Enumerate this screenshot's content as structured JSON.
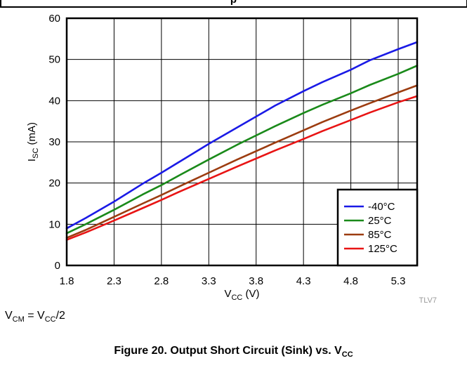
{
  "header_fragment": "p",
  "condition": {
    "lhs_main": "V",
    "lhs_sub": "CM",
    "eq": " = ",
    "rhs_main": "V",
    "rhs_sub": "CC",
    "rhs_tail": "/2"
  },
  "caption": {
    "text": "Figure 20. Output Short Circuit (Sink) vs. V",
    "sub": "CC"
  },
  "code_tag": "TLV7",
  "chart_data": {
    "type": "line",
    "xlabel": {
      "main": "V",
      "sub": "CC",
      "tail": " (V)"
    },
    "ylabel": {
      "main": "I",
      "sub": "SC",
      "tail": " (mA)"
    },
    "xlim": [
      1.8,
      5.5
    ],
    "ylim": [
      0,
      60
    ],
    "x_ticks": [
      "1.8",
      "2.3",
      "2.8",
      "3.3",
      "3.8",
      "4.3",
      "4.8",
      "5.3"
    ],
    "y_ticks": [
      "0",
      "10",
      "20",
      "30",
      "40",
      "50",
      "60"
    ],
    "grid": true,
    "legend_position": "bottom-right",
    "series": [
      {
        "name": "-40°C",
        "color": "#1a1ae6",
        "x": [
          1.8,
          2.0,
          2.3,
          2.6,
          2.8,
          3.0,
          3.3,
          3.6,
          4.0,
          4.3,
          4.5,
          4.8,
          5.0,
          5.3,
          5.5
        ],
        "y": [
          9.0,
          11.5,
          15.5,
          19.8,
          22.5,
          25.3,
          29.5,
          33.5,
          38.8,
          42.3,
          44.5,
          47.5,
          49.8,
          52.5,
          54.2
        ]
      },
      {
        "name": "25°C",
        "color": "#1a8a1a",
        "x": [
          1.8,
          2.0,
          2.3,
          2.6,
          2.8,
          3.0,
          3.3,
          3.6,
          4.0,
          4.3,
          4.5,
          4.8,
          5.0,
          5.3,
          5.5
        ],
        "y": [
          7.8,
          10.0,
          13.5,
          17.2,
          19.5,
          22.0,
          25.7,
          29.3,
          33.8,
          37.0,
          39.0,
          41.8,
          43.8,
          46.5,
          48.5
        ]
      },
      {
        "name": "85°C",
        "color": "#9c3c10",
        "x": [
          1.8,
          2.0,
          2.3,
          2.6,
          2.8,
          3.0,
          3.3,
          3.6,
          4.0,
          4.3,
          4.5,
          4.8,
          5.0,
          5.3,
          5.5
        ],
        "y": [
          6.7,
          8.6,
          11.8,
          15.0,
          17.1,
          19.3,
          22.5,
          25.7,
          29.8,
          32.8,
          34.8,
          37.6,
          39.4,
          42.0,
          43.7
        ]
      },
      {
        "name": "125°C",
        "color": "#e81414",
        "x": [
          1.8,
          2.0,
          2.3,
          2.6,
          2.8,
          3.0,
          3.3,
          3.6,
          4.0,
          4.3,
          4.5,
          4.8,
          5.0,
          5.3,
          5.5
        ],
        "y": [
          6.2,
          8.0,
          10.9,
          13.9,
          15.9,
          18.0,
          21.0,
          24.0,
          27.9,
          30.7,
          32.6,
          35.3,
          37.1,
          39.6,
          41.1
        ]
      }
    ]
  }
}
